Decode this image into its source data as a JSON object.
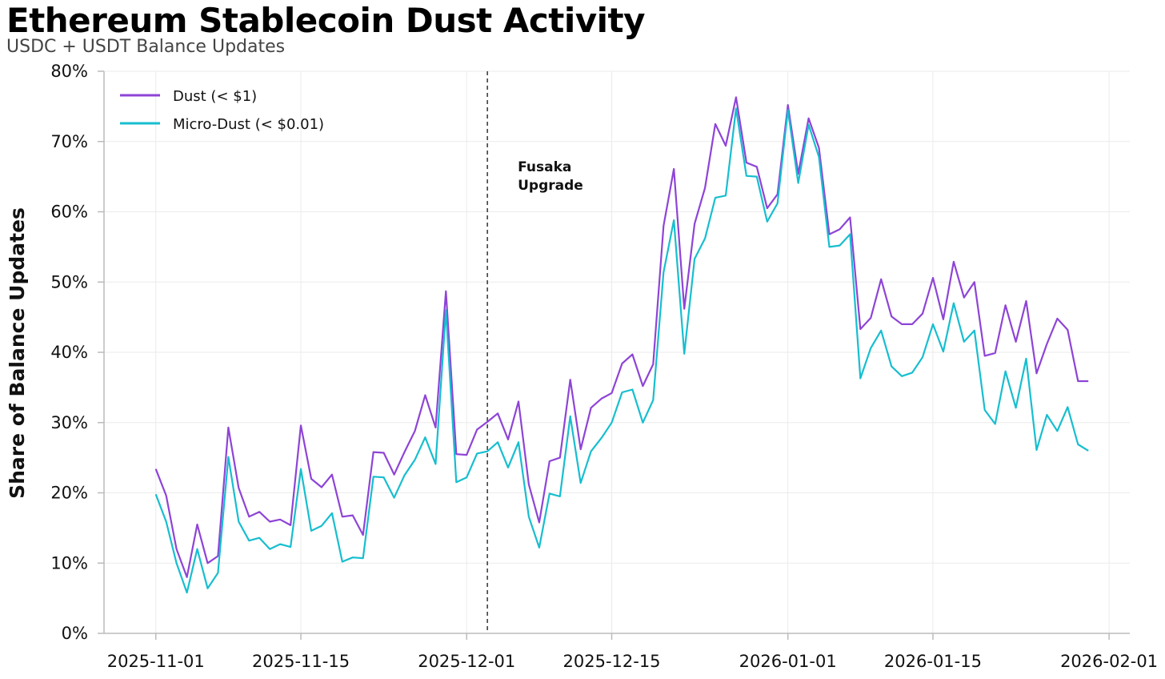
{
  "chart_data": {
    "type": "line",
    "title": "Ethereum Stablecoin Dust Activity",
    "subtitle": "USDC + USDT Balance Updates",
    "xlabel": "",
    "ylabel": "Share of Balance Updates",
    "x_start": "2025-11-01",
    "x_step": "1 day",
    "xlim": [
      "2025-10-27",
      "2026-02-03"
    ],
    "ylim": [
      0,
      80
    ],
    "yticks": [
      0,
      10,
      20,
      30,
      40,
      50,
      60,
      70,
      80
    ],
    "ytick_labels": [
      "0%",
      "10%",
      "20%",
      "30%",
      "40%",
      "50%",
      "60%",
      "70%",
      "80%"
    ],
    "xticks": [
      "2025-11-01",
      "2025-11-15",
      "2025-12-01",
      "2025-12-15",
      "2026-01-01",
      "2026-01-15",
      "2026-02-01"
    ],
    "xtick_labels": [
      "2025-11-01",
      "2025-11-15",
      "2025-12-01",
      "2025-12-15",
      "2026-01-01",
      "2026-01-15",
      "2026-02-01"
    ],
    "grid": true,
    "legend_position": "top-left",
    "series": [
      {
        "name": "Dust (< $1)",
        "color": "#8e44d6",
        "values": [
          23.4,
          19.6,
          12.0,
          8.0,
          15.5,
          10.0,
          11.0,
          29.3,
          20.7,
          16.6,
          17.3,
          15.9,
          16.2,
          15.4,
          29.6,
          22.0,
          20.8,
          22.6,
          16.6,
          16.8,
          14.0,
          25.8,
          25.7,
          22.6,
          25.8,
          28.8,
          33.9,
          29.3,
          48.7,
          25.5,
          25.4,
          29.0,
          30.1,
          31.3,
          27.6,
          33.0,
          21.2,
          15.8,
          24.5,
          25.0,
          36.1,
          26.2,
          32.1,
          33.4,
          34.2,
          38.4,
          39.7,
          35.2,
          38.3,
          58.0,
          66.1,
          46.2,
          58.3,
          63.4,
          72.5,
          69.4,
          76.3,
          67.0,
          66.4,
          60.5,
          62.5,
          75.2,
          65.4,
          73.3,
          69.1,
          56.8,
          57.5,
          59.2,
          43.3,
          44.9,
          50.4,
          45.1,
          44.0,
          44.0,
          45.5,
          50.6,
          44.7,
          52.9,
          47.8,
          50.0,
          39.5,
          39.9,
          46.7,
          41.5,
          47.3,
          37.0,
          41.2,
          44.8,
          43.2,
          35.9,
          35.9
        ]
      },
      {
        "name": "Micro-Dust (< $0.01)",
        "color": "#17becf",
        "values": [
          19.8,
          15.9,
          10.0,
          5.8,
          12.0,
          6.4,
          8.6,
          25.1,
          15.9,
          13.2,
          13.6,
          12.0,
          12.7,
          12.3,
          23.4,
          14.6,
          15.3,
          17.1,
          10.2,
          10.8,
          10.7,
          22.3,
          22.2,
          19.3,
          22.5,
          24.7,
          27.9,
          24.1,
          46.0,
          21.5,
          22.2,
          25.6,
          25.9,
          27.2,
          23.6,
          27.2,
          16.6,
          12.2,
          19.9,
          19.5,
          30.9,
          21.4,
          25.9,
          27.8,
          30.0,
          34.3,
          34.7,
          30.0,
          33.2,
          51.4,
          58.8,
          39.8,
          53.3,
          56.2,
          62.0,
          62.3,
          74.7,
          65.1,
          65.0,
          58.6,
          61.2,
          74.5,
          64.1,
          72.4,
          67.8,
          55.0,
          55.2,
          56.8,
          36.3,
          40.6,
          43.1,
          38.0,
          36.6,
          37.1,
          39.3,
          44.0,
          40.1,
          47.0,
          41.5,
          43.1,
          31.8,
          29.8,
          37.3,
          32.1,
          39.1,
          26.1,
          31.1,
          28.8,
          32.2,
          26.9,
          26.0
        ]
      }
    ],
    "annotations": [
      {
        "x": "2025-12-03",
        "style": "dashed",
        "text": [
          "Fusaka",
          "Upgrade"
        ]
      }
    ]
  }
}
